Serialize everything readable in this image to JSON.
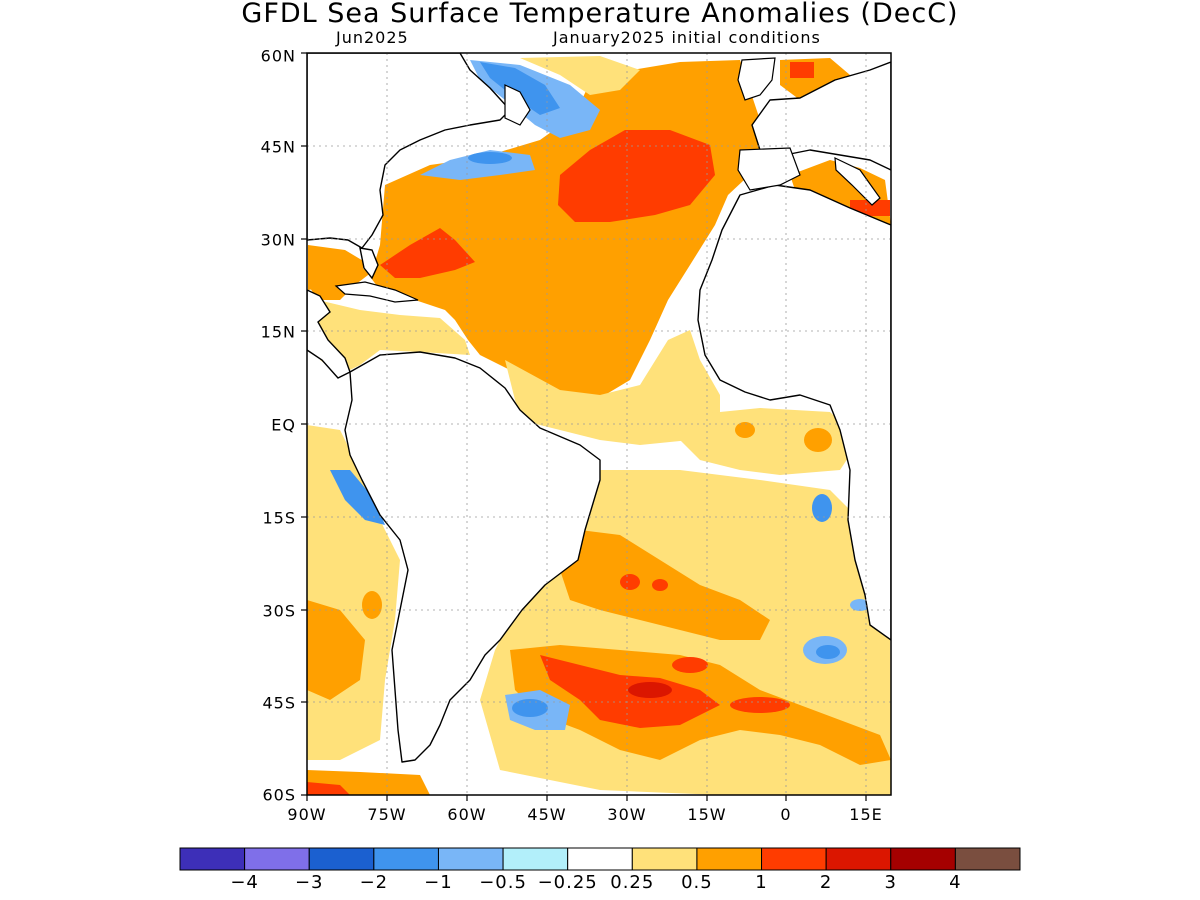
{
  "title": "GFDL Sea Surface Temperature Anomalies (DecC)",
  "subtitle_left": "Jun2025",
  "subtitle_right": "January2025 initial conditions",
  "lat_labels": [
    "60N",
    "45N",
    "30N",
    "15N",
    "EQ",
    "15S",
    "30S",
    "45S",
    "60S"
  ],
  "lon_labels": [
    "90W",
    "75W",
    "60W",
    "45W",
    "30W",
    "15W",
    "0",
    "15E"
  ],
  "colorbar": {
    "colors": [
      "#3d2fb8",
      "#7f6fe9",
      "#1b60d0",
      "#3f94ee",
      "#79b6f7",
      "#b2effa",
      "#ffffff",
      "#ffe17a",
      "#ffa000",
      "#ff3c00",
      "#db1600",
      "#a50000",
      "#7a4e3f"
    ],
    "labels": [
      "−4",
      "−3",
      "−2",
      "−1",
      "−0.5",
      "−0.25",
      "0.25",
      "0.5",
      "1",
      "2",
      "3",
      "4"
    ]
  },
  "colors": {
    "land": "#ffffff",
    "coast": "#000000",
    "grid": "#9a9a9a"
  }
}
